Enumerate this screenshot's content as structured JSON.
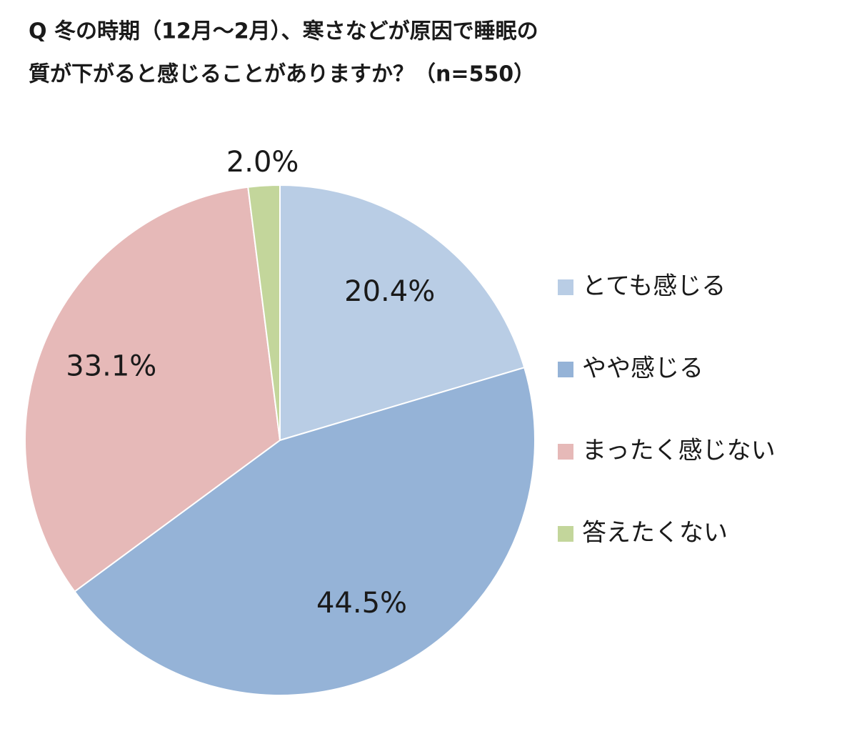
{
  "chart_data": {
    "type": "pie",
    "title": [
      "Q 冬の時期（12月～2月）、寒さなどが原因で睡眠の",
      "質が下がると感じることがありますか？（n=550）"
    ],
    "categories": [
      "とても感じる",
      "やや感じる",
      "まったく感じない",
      "答えたくない"
    ],
    "values": [
      20.4,
      44.5,
      33.1,
      2.0
    ],
    "value_labels": [
      "20.4%",
      "44.5%",
      "33.1%",
      "2.0%"
    ],
    "colors": [
      "#b9cde5",
      "#95b3d7",
      "#e6b9b8",
      "#c3d69b"
    ],
    "legend": "right"
  }
}
